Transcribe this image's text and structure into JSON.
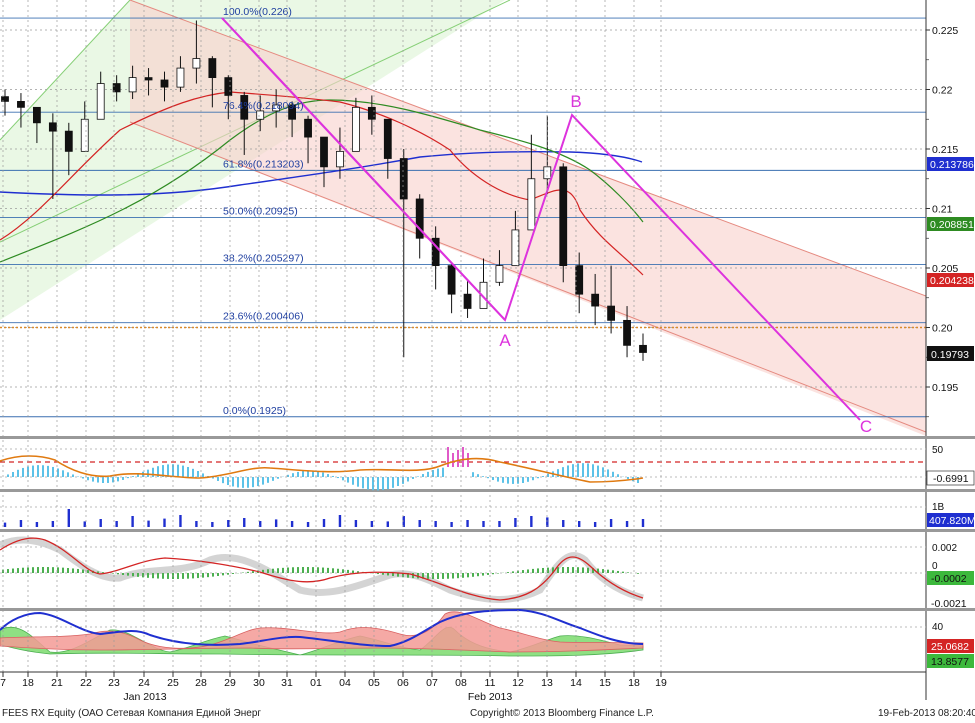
{
  "chart_data": [
    {
      "type": "candlestick",
      "panel": "price",
      "ylim": [
        0.1915,
        0.2275
      ],
      "y_ticks": [
        "0.225",
        "0.22",
        "0.215",
        "0.21",
        "0.205",
        "0.20",
        "0.195"
      ],
      "x_ticks": [
        "7",
        "18",
        "21",
        "22",
        "23",
        "24",
        "25",
        "28",
        "29",
        "30",
        "31",
        "01",
        "04",
        "05",
        "06",
        "07",
        "08",
        "11",
        "12",
        "13",
        "14",
        "15",
        "18",
        "19"
      ],
      "month_labels": [
        "Jan 2013",
        "Feb 2013"
      ],
      "close": [
        0.219,
        0.2185,
        0.2172,
        0.2165,
        0.2148,
        0.2175,
        0.2205,
        0.2198,
        0.221,
        0.2208,
        0.2202,
        0.2218,
        0.2226,
        0.221,
        0.2195,
        0.2175,
        0.2182,
        0.2187,
        0.2175,
        0.216,
        0.2135,
        0.2148,
        0.2185,
        0.2175,
        0.2142,
        0.2108,
        0.2075,
        0.2052,
        0.2028,
        0.2016,
        0.2038,
        0.2052,
        0.2082,
        0.2125,
        0.2135,
        0.2052,
        0.2028,
        0.2018,
        0.2006,
        0.1985,
        0.1979
      ],
      "high": [
        0.22,
        0.2197,
        0.2185,
        0.218,
        0.2172,
        0.219,
        0.2215,
        0.2212,
        0.222,
        0.2218,
        0.2215,
        0.2228,
        0.2258,
        0.2228,
        0.2212,
        0.2198,
        0.2195,
        0.22,
        0.219,
        0.2178,
        0.216,
        0.2168,
        0.2193,
        0.2195,
        0.2175,
        0.215,
        0.2112,
        0.2085,
        0.2055,
        0.204,
        0.2058,
        0.2065,
        0.2098,
        0.2162,
        0.2178,
        0.2138,
        0.2063,
        0.2045,
        0.2052,
        0.2018,
        0.1995
      ],
      "low": [
        0.2178,
        0.2168,
        0.2155,
        0.2108,
        0.2128,
        0.2158,
        0.2178,
        0.219,
        0.2192,
        0.2195,
        0.219,
        0.2198,
        0.2205,
        0.2185,
        0.2175,
        0.2145,
        0.2165,
        0.2168,
        0.216,
        0.2138,
        0.2118,
        0.2125,
        0.2158,
        0.2162,
        0.2125,
        0.1975,
        0.2058,
        0.2032,
        0.2012,
        0.2008,
        0.2022,
        0.2035,
        0.2062,
        0.2098,
        0.2112,
        0.2038,
        0.2012,
        0.2002,
        0.1995,
        0.1975,
        0.1972
      ],
      "current_price": "0.19793",
      "ma_labels": [
        {
          "value": "0.213786",
          "color": "#1f2fd0"
        },
        {
          "value": "0.208851",
          "color": "#2e8b22"
        },
        {
          "value": "0.204238",
          "color": "#d42424"
        }
      ],
      "fibonacci": [
        {
          "label": "100.0%(0.226)",
          "value": 0.226
        },
        {
          "label": "76.4%(0.218094)",
          "value": 0.218094
        },
        {
          "label": "61.8%(0.213203)",
          "value": 0.213203
        },
        {
          "label": "50.0%(0.20925)",
          "value": 0.20925
        },
        {
          "label": "38.2%(0.205297)",
          "value": 0.205297
        },
        {
          "label": "23.6%(0.200406)",
          "value": 0.200406
        },
        {
          "label": "0.0%(0.1925)",
          "value": 0.1925
        }
      ],
      "wave_labels": [
        "A",
        "B",
        "C"
      ],
      "reference_line": 0.2
    },
    {
      "type": "line",
      "panel": "rsi",
      "y_ticks": [
        "50"
      ],
      "last_value": "-0.6991",
      "reference_level": 50
    },
    {
      "type": "bar",
      "panel": "volume",
      "y_ticks": [
        "1B"
      ],
      "last_value": "407.820M",
      "values": [
        0.22,
        0.35,
        0.25,
        0.3,
        0.9,
        0.28,
        0.4,
        0.3,
        0.55,
        0.32,
        0.42,
        0.6,
        0.3,
        0.25,
        0.35,
        0.45,
        0.3,
        0.38,
        0.3,
        0.25,
        0.4,
        0.6,
        0.35,
        0.3,
        0.28,
        0.55,
        0.35,
        0.3,
        0.25,
        0.35,
        0.3,
        0.3,
        0.45,
        0.55,
        0.48,
        0.35,
        0.3,
        0.25,
        0.4,
        0.3,
        0.4
      ]
    },
    {
      "type": "line",
      "panel": "macd",
      "y_ticks": [
        "0.002",
        "0",
        "-0.0002",
        "-0.0021"
      ],
      "last_values": [
        "-0.0002",
        "-0.0021"
      ]
    },
    {
      "type": "area",
      "panel": "dmi",
      "y_ticks": [
        "40"
      ],
      "last_values": [
        "25.0682",
        "13.8577"
      ]
    }
  ],
  "footer": {
    "ticker": "FEES RX Equity (ОАО Сетевая Компания Единой Энерг",
    "copyright": "Copyright© 2013 Bloomberg Finance L.P.",
    "timestamp": "19-Feb-2013 08:20:40"
  }
}
